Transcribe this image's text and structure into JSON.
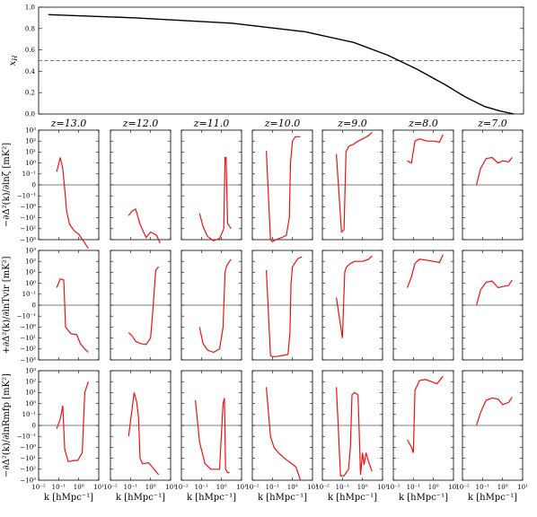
{
  "chart_data": [
    {
      "type": "line",
      "panel": "top",
      "ylabel": "x_H",
      "ylim": [
        0.0,
        1.0
      ],
      "yticks": [
        "0.0",
        "0.2",
        "0.4",
        "0.6",
        "0.8",
        "1.0"
      ],
      "reference_line": 0.5,
      "series": [
        {
          "color": "#000000",
          "t": [
            0.02,
            0.2,
            0.4,
            0.55,
            0.65,
            0.72,
            0.78,
            0.84,
            0.88,
            0.92,
            0.95,
            0.98
          ],
          "values": [
            0.93,
            0.9,
            0.85,
            0.77,
            0.67,
            0.55,
            0.42,
            0.27,
            0.16,
            0.07,
            0.03,
            0.0
          ]
        }
      ]
    },
    {
      "type": "line",
      "panel": "grid",
      "redshift_titles": [
        "z=13.0",
        "z=12.0",
        "z=11.0",
        "z=10.0",
        "z=9.0",
        "z=8.0",
        "z=7.0"
      ],
      "yscale": "symlog",
      "xscale": "log",
      "xlim": [
        0.01,
        10
      ],
      "xticks": [
        "10⁻²",
        "10⁻¹",
        "10⁰",
        "10¹"
      ],
      "yticks": [
        "10³",
        "10²",
        "10¹",
        "10⁰",
        "10⁻¹",
        "0",
        "−10⁻¹",
        "−10⁰",
        "−10¹",
        "−10²",
        "−10³"
      ],
      "xlabel": "k [hMpc⁻¹]",
      "row_labels": [
        "−∂Δ²(k)/∂lnζ  [mK²]",
        "+∂Δ²(k)/∂lnTvir  [mK²]",
        "−∂Δ²(k)/∂lnRmfp  [mK²]"
      ],
      "curves": [
        [
          {
            "k": [
              0.08,
              0.12,
              0.16,
              0.2,
              0.25,
              0.35,
              0.6,
              1.0,
              2.0,
              3.0
            ],
            "y": [
              1.2,
              2.5,
              1.5,
              -0.4,
              -2.4,
              -3.6,
              -4.2,
              -4.5,
              -5.3,
              -5.8
            ]
          },
          {
            "k": [
              0.08,
              0.12,
              0.18,
              0.3,
              0.6,
              1.0,
              2.0,
              3.0
            ],
            "y": [
              -2.8,
              -2.4,
              -2.2,
              -3.6,
              -4.8,
              -4.3,
              -4.6,
              -5.3
            ]
          },
          {
            "k": [
              0.08,
              0.12,
              0.2,
              0.4,
              0.8,
              1.3,
              1.5,
              1.7,
              2.0,
              3.0
            ],
            "y": [
              -2.6,
              -3.8,
              -4.7,
              -5.1,
              -4.9,
              -4.0,
              2.5,
              2.5,
              -3.5,
              -4.0
            ]
          },
          {
            "k": [
              0.05,
              0.08,
              0.1,
              0.15,
              0.3,
              0.5,
              0.7,
              0.8,
              1.0,
              1.4,
              2.0,
              2.5
            ],
            "y": [
              3.1,
              -5.0,
              -5.2,
              -5.0,
              -4.8,
              -4.6,
              -3.0,
              2.0,
              4.0,
              4.4,
              4.4,
              4.4
            ]
          },
          {
            "k": [
              0.05,
              0.09,
              0.12,
              0.15,
              0.2,
              0.25,
              0.35,
              0.6,
              1.0,
              2.0,
              3.0
            ],
            "y": [
              2.8,
              -4.3,
              -4.1,
              3.0,
              3.5,
              3.6,
              3.7,
              4.0,
              4.2,
              4.5,
              4.8
            ]
          },
          {
            "k": [
              0.05,
              0.08,
              0.12,
              0.2,
              0.5,
              1.0,
              2.0,
              3.0
            ],
            "y": [
              2.2,
              2.0,
              4.0,
              4.2,
              4.0,
              4.0,
              3.9,
              4.6
            ]
          },
          {
            "k": [
              0.05,
              0.08,
              0.15,
              0.3,
              0.6,
              1.0,
              2.0,
              3.0
            ],
            "y": [
              0.0,
              1.5,
              2.4,
              2.5,
              2.0,
              2.2,
              2.1,
              2.5
            ]
          }
        ],
        [
          {
            "k": [
              0.08,
              0.12,
              0.18,
              0.22,
              0.3,
              0.4,
              0.8,
              1.2,
              2.0,
              3.0
            ],
            "y": [
              1.6,
              2.4,
              2.3,
              -2.0,
              -2.3,
              -2.6,
              -2.7,
              -3.5,
              -4.0,
              -4.3
            ]
          },
          {
            "k": [
              0.08,
              0.12,
              0.18,
              0.3,
              0.6,
              1.0,
              1.3,
              1.8,
              2.5
            ],
            "y": [
              -2.5,
              -2.8,
              -3.3,
              -3.5,
              -3.6,
              -3.0,
              -0.5,
              3.2,
              3.5
            ]
          },
          {
            "k": [
              0.08,
              0.12,
              0.2,
              0.4,
              0.8,
              1.2,
              1.5,
              1.8,
              2.5,
              3.0
            ],
            "y": [
              -2.0,
              -3.5,
              -4.1,
              -4.3,
              -4.0,
              -2.0,
              3.0,
              3.6,
              4.0,
              4.2
            ]
          },
          {
            "k": [
              0.05,
              0.08,
              0.1,
              0.15,
              0.3,
              0.6,
              0.75,
              0.85,
              1.0,
              1.5,
              2.0,
              3.0
            ],
            "y": [
              3.2,
              -4.6,
              -4.7,
              -4.7,
              -4.6,
              -4.5,
              -2.5,
              2.0,
              3.5,
              4.0,
              4.3,
              4.4
            ]
          },
          {
            "k": [
              0.05,
              0.1,
              0.13,
              0.16,
              0.25,
              0.4,
              0.7,
              1.0,
              2.0,
              3.0
            ],
            "y": [
              0.7,
              -3.0,
              3.0,
              3.5,
              3.8,
              4.0,
              4.0,
              4.0,
              4.2,
              4.5
            ]
          },
          {
            "k": [
              0.05,
              0.08,
              0.12,
              0.2,
              0.5,
              1.0,
              2.0,
              3.0
            ],
            "y": [
              1.6,
              2.6,
              3.8,
              4.2,
              4.1,
              4.0,
              3.9,
              4.6
            ]
          },
          {
            "k": [
              0.05,
              0.08,
              0.15,
              0.3,
              0.6,
              1.0,
              2.0,
              3.0
            ],
            "y": [
              0.0,
              1.4,
              2.1,
              2.2,
              1.6,
              1.7,
              1.8,
              2.3
            ]
          }
        ],
        [
          {
            "k": [
              0.08,
              0.12,
              0.16,
              0.2,
              0.3,
              0.6,
              0.9,
              1.2,
              1.5,
              2.0,
              3.0
            ],
            "y": [
              -0.3,
              0.6,
              1.8,
              -2.2,
              -3.3,
              -3.2,
              -3.2,
              -2.8,
              -2.5,
              3.0,
              4.0
            ]
          },
          {
            "k": [
              0.08,
              0.12,
              0.15,
              0.2,
              0.25,
              0.3,
              0.4,
              0.8,
              1.5,
              2.5
            ],
            "y": [
              -1.0,
              1.5,
              3.0,
              2.2,
              0.8,
              -3.0,
              -3.5,
              -3.4,
              -4.0,
              -4.5
            ]
          },
          {
            "k": [
              0.05,
              0.08,
              0.15,
              0.3,
              0.8,
              1.2,
              1.4,
              1.6,
              2.0,
              2.5
            ],
            "y": [
              2.3,
              -1.5,
              -3.5,
              -4.0,
              -4.0,
              2.0,
              2.5,
              -4.0,
              -4.3,
              -4.3
            ]
          },
          {
            "k": [
              0.05,
              0.08,
              0.12,
              0.2,
              0.4,
              0.8,
              1.5,
              2.5
            ],
            "y": [
              3.5,
              -1.0,
              -2.0,
              -2.5,
              -3.0,
              -3.4,
              -3.8,
              -5.0
            ]
          },
          {
            "k": [
              0.05,
              0.08,
              0.12,
              0.2,
              0.25,
              0.3,
              0.4,
              0.6,
              0.8,
              1.0,
              1.2,
              1.5,
              2.0,
              3.0
            ],
            "y": [
              3.5,
              -4.6,
              -4.6,
              -4.0,
              -2.0,
              2.8,
              3.0,
              2.8,
              -4.5,
              -2.5,
              -3.6,
              -2.5,
              -3.3,
              -4.2
            ]
          },
          {
            "k": [
              0.05,
              0.08,
              0.1,
              0.12,
              0.2,
              0.4,
              0.8,
              1.5,
              3.0
            ],
            "y": [
              -1.3,
              -2.0,
              -2.5,
              3.2,
              4.1,
              4.2,
              4.0,
              3.8,
              4.5
            ]
          },
          {
            "k": [
              0.05,
              0.08,
              0.15,
              0.3,
              0.6,
              1.0,
              2.0,
              3.0
            ],
            "y": [
              0.0,
              1.2,
              2.3,
              2.5,
              2.4,
              1.9,
              2.1,
              2.6
            ]
          }
        ]
      ]
    }
  ]
}
